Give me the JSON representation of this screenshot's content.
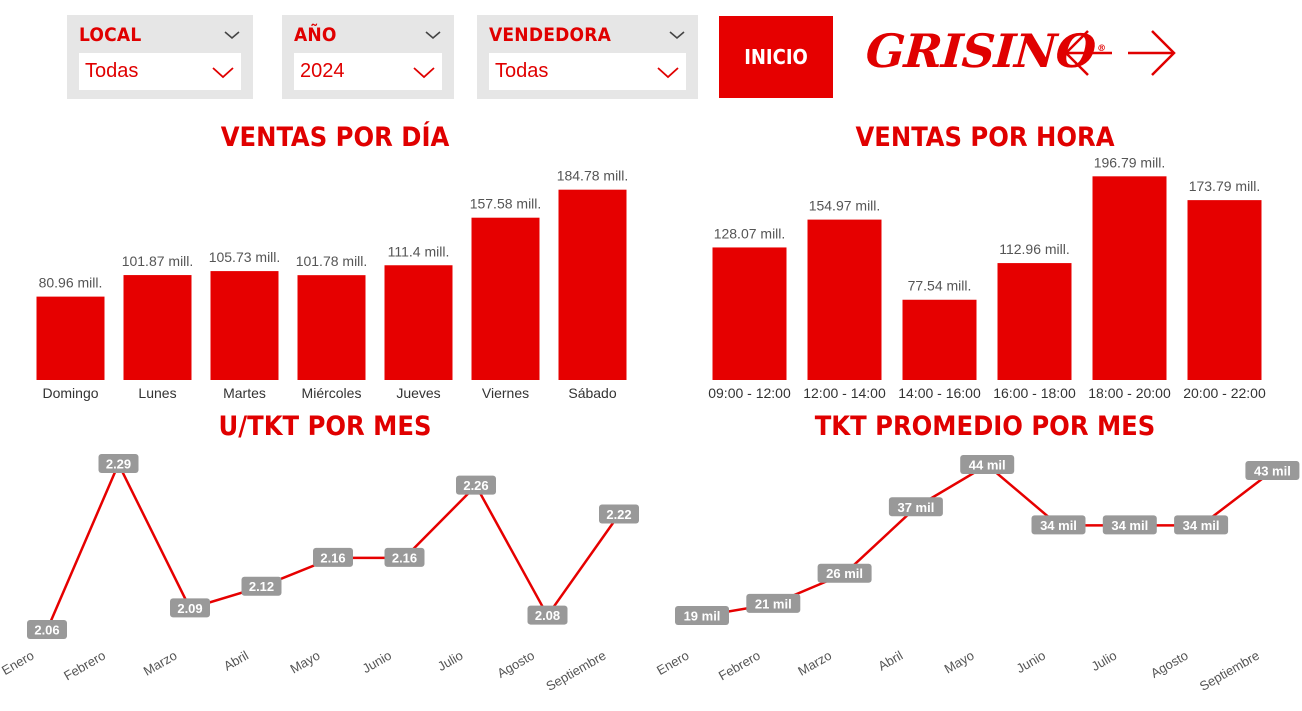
{
  "filters": {
    "local": {
      "label": "LOCAL",
      "value": "Todas"
    },
    "anio": {
      "label": "AÑO",
      "value": "2024"
    },
    "vendedora": {
      "label": "VENDEDORA",
      "value": "Todas"
    }
  },
  "toolbar": {
    "inicio_label": "INICIO"
  },
  "brand": {
    "name": "GRISINO",
    "mark": "®"
  },
  "colors": {
    "accent": "#e60000",
    "label_bg": "#999999"
  },
  "icons": {
    "back": "arrow-left-icon",
    "forward": "arrow-right-icon",
    "dropdown": "chevron-down-icon"
  },
  "chart_data": [
    {
      "type": "bar",
      "title": "VENTAS POR DÍA",
      "categories": [
        "Domingo",
        "Lunes",
        "Martes",
        "Miércoles",
        "Jueves",
        "Viernes",
        "Sábado"
      ],
      "values": [
        80.96,
        101.87,
        105.73,
        101.78,
        111.4,
        157.58,
        184.78
      ],
      "labels": [
        "80.96 mill.",
        "101.87 mill.",
        "105.73 mill.",
        "101.78 mill.",
        "111.4 mill.",
        "157.58 mill.",
        "184.78 mill."
      ],
      "ylim": [
        0,
        200
      ]
    },
    {
      "type": "bar",
      "title": "VENTAS POR HORA",
      "categories": [
        "09:00 - 12:00",
        "12:00 - 14:00",
        "14:00 - 16:00",
        "16:00 - 18:00",
        "18:00 - 20:00",
        "20:00 - 22:00"
      ],
      "values": [
        128.07,
        154.97,
        77.54,
        112.96,
        196.79,
        173.79
      ],
      "labels": [
        "128.07 mill.",
        "154.97 mill.",
        "77.54 mill.",
        "112.96 mill.",
        "196.79 mill.",
        "173.79 mill."
      ],
      "ylim": [
        0,
        200
      ]
    },
    {
      "type": "line",
      "title": "U/TKT POR MES",
      "categories": [
        "Enero",
        "Febrero",
        "Marzo",
        "Abril",
        "Mayo",
        "Junio",
        "Julio",
        "Agosto",
        "Septiembre"
      ],
      "values": [
        2.06,
        2.29,
        2.09,
        2.12,
        2.16,
        2.16,
        2.26,
        2.08,
        2.22
      ],
      "labels": [
        "2.06",
        "2.29",
        "2.09",
        "2.12",
        "2.16",
        "2.16",
        "2.26",
        "2.08",
        "2.22"
      ],
      "ylim": [
        2.06,
        2.29
      ]
    },
    {
      "type": "line",
      "title": "TKT PROMEDIO POR MES",
      "categories": [
        "Enero",
        "Febrero",
        "Marzo",
        "Abril",
        "Mayo",
        "Junio",
        "Julio",
        "Agosto",
        "Septiembre"
      ],
      "values": [
        19,
        21,
        26,
        37,
        44,
        34,
        34,
        34,
        43
      ],
      "labels": [
        "19 mil",
        "21 mil",
        "26 mil",
        "37 mil",
        "44 mil",
        "34 mil",
        "34 mil",
        "34 mil",
        "43 mil"
      ],
      "ylim": [
        19,
        44
      ]
    }
  ]
}
